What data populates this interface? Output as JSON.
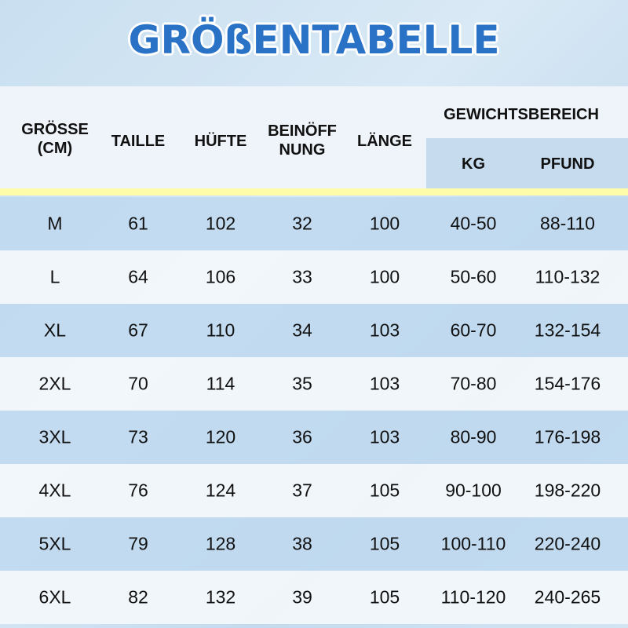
{
  "title": "GRÖßENTABELLE",
  "colors": {
    "title": "#2a72c6",
    "stripe": "#fefca8",
    "row_blue": "#bed8ee",
    "row_white": "#f3f7fb"
  },
  "headers": {
    "size_line1": "GRÖSSE",
    "size_line2": "(CM)",
    "waist": "TAILLE",
    "hip": "HÜFTE",
    "leg_line1": "BEINÖFF",
    "leg_line2": "NUNG",
    "length": "LÄNGE",
    "weight_range": "GEWICHTSBEREICH",
    "kg": "KG",
    "pound": "PFUND"
  },
  "rows": [
    [
      "M",
      "61",
      "102",
      "32",
      "100",
      "40-50",
      "88-110"
    ],
    [
      "L",
      "64",
      "106",
      "33",
      "100",
      "50-60",
      "110-132"
    ],
    [
      "XL",
      "67",
      "110",
      "34",
      "103",
      "60-70",
      "132-154"
    ],
    [
      "2XL",
      "70",
      "114",
      "35",
      "103",
      "70-80",
      "154-176"
    ],
    [
      "3XL",
      "73",
      "120",
      "36",
      "103",
      "80-90",
      "176-198"
    ],
    [
      "4XL",
      "76",
      "124",
      "37",
      "105",
      "90-100",
      "198-220"
    ],
    [
      "5XL",
      "79",
      "128",
      "38",
      "105",
      "100-110",
      "220-240"
    ],
    [
      "6XL",
      "82",
      "132",
      "39",
      "105",
      "110-120",
      "240-265"
    ]
  ]
}
